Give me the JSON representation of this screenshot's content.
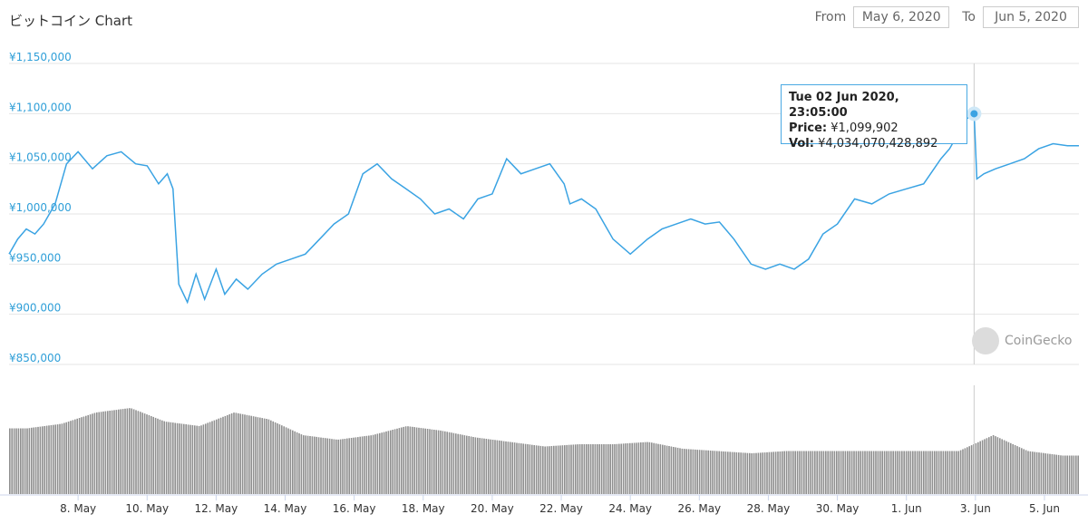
{
  "title": "ビットコイン Chart",
  "date_range": {
    "from_label": "From",
    "from_value": "May 6, 2020",
    "to_label": "To",
    "to_value": "Jun 5, 2020"
  },
  "watermark": "CoinGecko",
  "tooltip": {
    "date": "Tue 02 Jun 2020, 23:05:00",
    "price_label": "Price:",
    "price_value": "¥1,099,902",
    "vol_label": "Vol:",
    "vol_value": "¥4,034,070,428,892"
  },
  "colors": {
    "line": "#3aa3e3",
    "volume": "#8f8f8f",
    "grid": "#e6e6e6",
    "axis_label": "#2f9fd8"
  },
  "chart_data": [
    {
      "type": "line",
      "title": "ビットコイン Chart",
      "x_axis": {
        "type": "date",
        "range": [
          "2020-05-06",
          "2020-06-05"
        ],
        "tick_labels": [
          "8. May",
          "10. May",
          "12. May",
          "14. May",
          "16. May",
          "18. May",
          "20. May",
          "22. May",
          "24. May",
          "26. May",
          "28. May",
          "30. May",
          "1. Jun",
          "3. Jun",
          "5. Jun"
        ],
        "tick_dates": [
          "2020-05-08",
          "2020-05-10",
          "2020-05-12",
          "2020-05-14",
          "2020-05-16",
          "2020-05-18",
          "2020-05-20",
          "2020-05-22",
          "2020-05-24",
          "2020-05-26",
          "2020-05-28",
          "2020-05-30",
          "2020-06-01",
          "2020-06-03",
          "2020-06-05"
        ]
      },
      "y_axis": {
        "ylim": [
          850000,
          1150000
        ],
        "tick_labels": [
          "¥1,150,000",
          "¥1,100,000",
          "¥1,050,000",
          "¥1,000,000",
          "¥950,000",
          "¥900,000",
          "¥850,000"
        ],
        "ticks": [
          1150000,
          1100000,
          1050000,
          1000000,
          950000,
          900000,
          850000
        ]
      },
      "grid": true,
      "series": [
        {
          "x": [
            "2020-05-06T00:00",
            "2020-05-06T06:00",
            "2020-05-06T12:00",
            "2020-05-06T18:00",
            "2020-05-07T00:00",
            "2020-05-07T08:00",
            "2020-05-07T16:00",
            "2020-05-08T00:00",
            "2020-05-08T10:00",
            "2020-05-08T20:00",
            "2020-05-09T06:00",
            "2020-05-09T16:00",
            "2020-05-10T00:00",
            "2020-05-10T08:00",
            "2020-05-10T14:00",
            "2020-05-10T18:00",
            "2020-05-10T22:00",
            "2020-05-11T04:00",
            "2020-05-11T10:00",
            "2020-05-11T16:00",
            "2020-05-12T00:00",
            "2020-05-12T06:00",
            "2020-05-12T14:00",
            "2020-05-12T22:00",
            "2020-05-13T08:00",
            "2020-05-13T18:00",
            "2020-05-14T04:00",
            "2020-05-14T14:00",
            "2020-05-15T00:00",
            "2020-05-15T10:00",
            "2020-05-15T20:00",
            "2020-05-16T06:00",
            "2020-05-16T16:00",
            "2020-05-17T02:00",
            "2020-05-17T12:00",
            "2020-05-17T22:00",
            "2020-05-18T08:00",
            "2020-05-18T18:00",
            "2020-05-19T04:00",
            "2020-05-19T14:00",
            "2020-05-20T00:00",
            "2020-05-20T10:00",
            "2020-05-20T20:00",
            "2020-05-21T06:00",
            "2020-05-21T16:00",
            "2020-05-22T02:00",
            "2020-05-22T06:00",
            "2020-05-22T14:00",
            "2020-05-23T00:00",
            "2020-05-23T12:00",
            "2020-05-24T00:00",
            "2020-05-24T12:00",
            "2020-05-24T22:00",
            "2020-05-25T08:00",
            "2020-05-25T18:00",
            "2020-05-26T04:00",
            "2020-05-26T14:00",
            "2020-05-27T00:00",
            "2020-05-27T12:00",
            "2020-05-27T22:00",
            "2020-05-28T08:00",
            "2020-05-28T18:00",
            "2020-05-29T04:00",
            "2020-05-29T14:00",
            "2020-05-30T00:00",
            "2020-05-30T12:00",
            "2020-05-31T00:00",
            "2020-05-31T12:00",
            "2020-06-01T00:00",
            "2020-06-01T12:00",
            "2020-06-02T00:00",
            "2020-06-02T06:00",
            "2020-06-02T12:00",
            "2020-06-02T18:00",
            "2020-06-02T23:05",
            "2020-06-03T01:00",
            "2020-06-03T06:00",
            "2020-06-03T14:00",
            "2020-06-04T00:00",
            "2020-06-04T10:00",
            "2020-06-04T20:00",
            "2020-06-05T06:00",
            "2020-06-05T16:00",
            "2020-06-06T00:00"
          ],
          "values": [
            960000,
            975000,
            985000,
            980000,
            990000,
            1010000,
            1050000,
            1062000,
            1045000,
            1058000,
            1062000,
            1050000,
            1048000,
            1030000,
            1040000,
            1025000,
            930000,
            912000,
            940000,
            915000,
            945000,
            920000,
            935000,
            925000,
            940000,
            950000,
            955000,
            960000,
            975000,
            990000,
            1000000,
            1040000,
            1050000,
            1035000,
            1025000,
            1015000,
            1000000,
            1005000,
            995000,
            1015000,
            1020000,
            1055000,
            1040000,
            1045000,
            1050000,
            1030000,
            1010000,
            1015000,
            1005000,
            975000,
            960000,
            975000,
            985000,
            990000,
            995000,
            990000,
            992000,
            975000,
            950000,
            945000,
            950000,
            945000,
            955000,
            980000,
            990000,
            1015000,
            1010000,
            1020000,
            1025000,
            1030000,
            1055000,
            1065000,
            1080000,
            1095000,
            1099902,
            1035000,
            1040000,
            1045000,
            1050000,
            1055000,
            1065000,
            1070000,
            1068000,
            1068000
          ]
        }
      ]
    },
    {
      "type": "bar",
      "title": "",
      "x_axis": {
        "type": "date",
        "range": [
          "2020-05-06",
          "2020-06-05"
        ]
      },
      "series": [
        {
          "x": [
            "2020-05-06",
            "2020-05-07",
            "2020-05-08",
            "2020-05-09",
            "2020-05-10",
            "2020-05-11",
            "2020-05-12",
            "2020-05-13",
            "2020-05-14",
            "2020-05-15",
            "2020-05-16",
            "2020-05-17",
            "2020-05-18",
            "2020-05-19",
            "2020-05-20",
            "2020-05-21",
            "2020-05-22",
            "2020-05-23",
            "2020-05-24",
            "2020-05-25",
            "2020-05-26",
            "2020-05-27",
            "2020-05-28",
            "2020-05-29",
            "2020-05-30",
            "2020-05-31",
            "2020-06-01",
            "2020-06-02",
            "2020-06-03",
            "2020-06-04",
            "2020-06-05"
          ],
          "values": [
            2.9,
            3.1,
            3.6,
            3.8,
            3.2,
            3.0,
            3.6,
            3.3,
            2.6,
            2.4,
            2.6,
            3.0,
            2.8,
            2.5,
            2.3,
            2.1,
            2.2,
            2.2,
            2.3,
            2.0,
            1.9,
            1.8,
            1.9,
            1.9,
            1.9,
            1.9,
            1.9,
            1.9,
            2.6,
            1.9,
            1.7
          ]
        }
      ]
    }
  ]
}
